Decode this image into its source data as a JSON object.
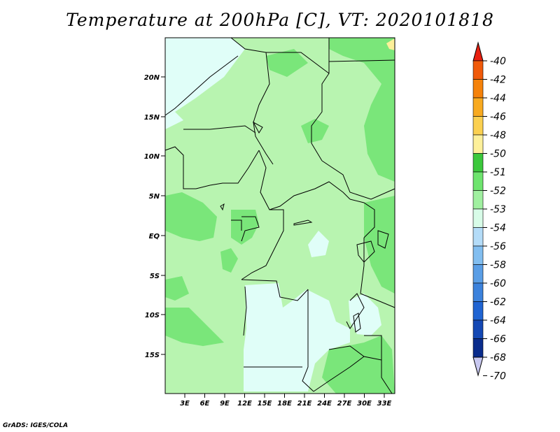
{
  "title": "Temperature at 200hPa [C], VT: 2020101818",
  "credit": "GrADS: IGES/COLA",
  "map": {
    "lat_labels": [
      "20N",
      "15N",
      "10N",
      "5N",
      "EQ",
      "5S",
      "10S",
      "15S"
    ],
    "lon_labels": [
      "3E",
      "6E",
      "9E",
      "12E",
      "15E",
      "18E",
      "21E",
      "24E",
      "27E",
      "30E",
      "33E"
    ]
  },
  "colorbar": {
    "labels": [
      "-40",
      "-42",
      "-44",
      "-46",
      "-48",
      "-50",
      "-51",
      "-52",
      "-53",
      "-54",
      "-56",
      "-58",
      "-60",
      "-62",
      "-64",
      "-66",
      "-68",
      "-70"
    ],
    "colors": [
      "#e82010",
      "#f05a0a",
      "#f5820a",
      "#f8aa20",
      "#fbd050",
      "#fdf09a",
      "#3cc83c",
      "#6ee46e",
      "#a0f0a0",
      "#d8fce8",
      "#b4dcf8",
      "#82bef0",
      "#5a9ee6",
      "#3c82dc",
      "#2064d2",
      "#1448b4",
      "#0a2c8c",
      "#c8c8f0"
    ]
  }
}
